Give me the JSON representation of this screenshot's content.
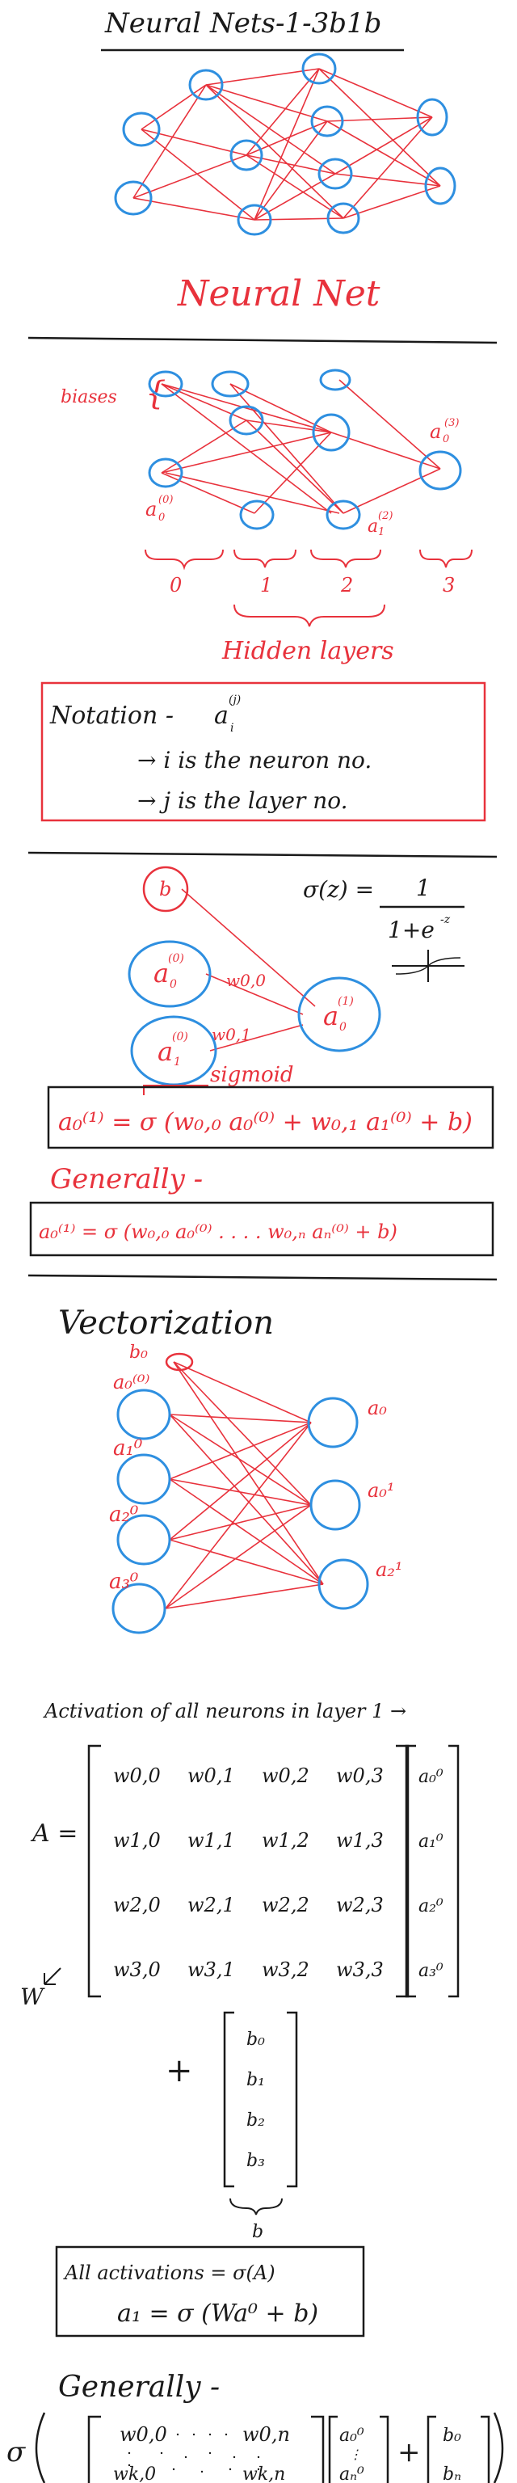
{
  "header": {
    "title": "Neural Nets-1-3b1b",
    "subtitle": "Neural Net"
  },
  "section1": {
    "biases_label": "biases",
    "node_labels": {
      "input": "a",
      "output": "a"
    },
    "layer_numbers": [
      "0",
      "1",
      "2",
      "3"
    ],
    "hidden_label": "Hidden layers"
  },
  "notation": {
    "title": "Notation -",
    "symbol": "a",
    "line1": "→ i is the neuron no.",
    "line2": "→ j is the layer no."
  },
  "section2": {
    "bias_node": "b",
    "sigma_formula": "σ(z) = 1 / (1+e^-z)",
    "sigma_num": "1",
    "sigma_den": "1+e",
    "sigma_exp": "-z",
    "w00": "w0,0",
    "w01": "w0,1",
    "sigmoid_label": "sigmoid",
    "equation": "a₀⁽¹⁾ = σ (w₀,₀ a₀⁽⁰⁾ + w₀,₁ a₁⁽⁰⁾ + b)",
    "generally": "Generally -",
    "general_equation": "a₀⁽¹⁾ = σ (w₀,₀ a₀⁽⁰⁾ . . . . w₀,ₙ aₙ⁽⁰⁾ + b)"
  },
  "vectorization": {
    "title": "Vectorization",
    "inputs": [
      "b₀",
      "a₀⁽⁰⁾",
      "a₁⁰",
      "a₂⁰",
      "a₃⁰"
    ],
    "outputs": [
      "a₀",
      "a₀¹",
      "a₂¹"
    ],
    "activation_heading": "Activation of all neurons in layer 1 →",
    "matrix_label": "A =",
    "w_label": "W",
    "matrix": [
      [
        "w0,0",
        "w0,1",
        "w0,2",
        "w0,3"
      ],
      [
        "w1,0",
        "w1,1",
        "w1,2",
        "w1,3"
      ],
      [
        "w2,0",
        "w2,1",
        "w2,2",
        "w2,3"
      ],
      [
        "w3,0",
        "w3,1",
        "w3,2",
        "w3,3"
      ]
    ],
    "a_vector": [
      "a₀⁰",
      "a₁⁰",
      "a₂⁰",
      "a₃⁰"
    ],
    "plus": "+",
    "b_vector": [
      "b₀",
      "b₁",
      "b₂",
      "b₃"
    ],
    "b_label": "b",
    "summary_line1": "All activations = σ(A)",
    "summary_line2": "a₁ = σ (Wa⁰ + b)"
  },
  "general": {
    "title": "Generally -",
    "sigma": "σ",
    "m_tl": "w0,0",
    "m_tr": "w0,n",
    "m_bl": "wk,0",
    "m_br": "wk,n",
    "v_top": "a₀⁰",
    "v_bot": "aₙ⁰",
    "plus": "+",
    "b_top": "b₀",
    "b_bot": "bₙ"
  }
}
